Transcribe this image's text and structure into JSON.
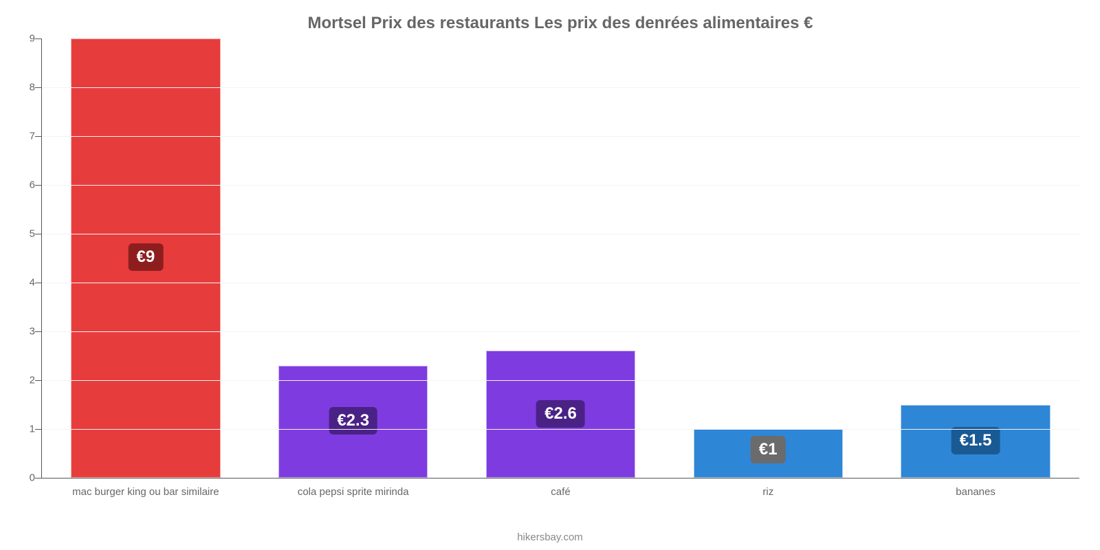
{
  "chart": {
    "type": "bar",
    "title": "Mortsel Prix des restaurants Les prix des denrées alimentaires €",
    "title_fontsize": 24,
    "title_color": "#666666",
    "background_color": "#ffffff",
    "grid_color": "#f5f2f2",
    "axis_color": "#555555",
    "label_color": "#666666",
    "label_fontsize": 15,
    "value_fontsize": 24,
    "ylim_min": 0,
    "ylim_max": 9,
    "ytick_step": 1,
    "bar_width_ratio": 0.72,
    "categories": [
      "mac burger king ou bar similaire",
      "cola pepsi sprite mirinda",
      "café",
      "riz",
      "bananes"
    ],
    "values": [
      9,
      2.3,
      2.6,
      1,
      1.5
    ],
    "value_labels": [
      "€9",
      "€2.3",
      "€2.6",
      "€1",
      "€1.5"
    ],
    "bar_colors": [
      "#e73c3c",
      "#7e3ce0",
      "#7e3ce0",
      "#2e86d6",
      "#2e86d6"
    ],
    "badge_colors": [
      "#8e1e1e",
      "#4a2286",
      "#4a2286",
      "#6b6b6b",
      "#1a5a94"
    ],
    "footer": "hikersbay.com"
  }
}
